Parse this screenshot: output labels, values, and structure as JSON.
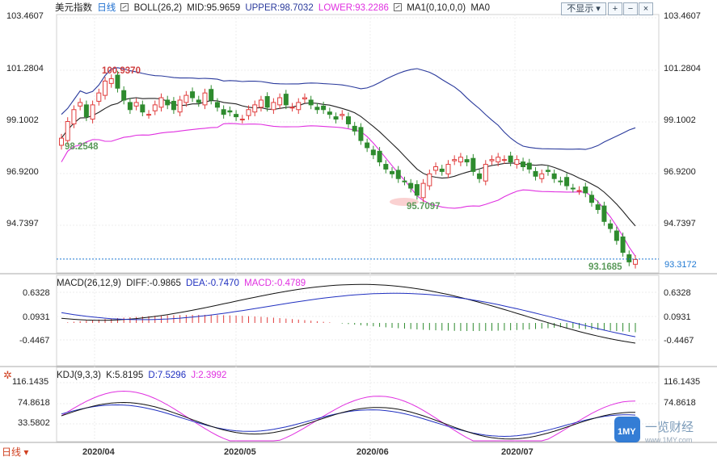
{
  "header": {
    "title": "美元指数",
    "period": "日线",
    "indicator": "BOLL(26,2)",
    "mid": "MID:95.9659",
    "upper": "UPPER:98.7032",
    "lower": "LOWER:93.2286",
    "ma": "MA1(0,10,0,0)",
    "ma0": "MA0",
    "display_toggle": "不显示"
  },
  "colors": {
    "up": "#e03c3c",
    "down": "#2e8b2e",
    "boll_upper": "#2a3a9c",
    "boll_lower": "#e030e0",
    "boll_mid": "#222222",
    "dif": "#111111",
    "dea": "#2030c0",
    "k": "#111111",
    "d": "#2030c0",
    "j": "#e030e0",
    "price_line": "#1e78d2"
  },
  "price_axis": [
    "103.4607",
    "101.2804",
    "99.1002",
    "96.9200",
    "94.7397"
  ],
  "last_price": "93.3172",
  "annotations": {
    "high": "100.9370",
    "low1": "98.2548",
    "low2": "95.7097",
    "low3": "93.1685"
  },
  "macd": {
    "label": "MACD(26,12,9)",
    "dif": "DIFF:-0.9865",
    "dea": "DEA:-0.7470",
    "macd": "MACD:-0.4789",
    "axis": [
      "0.6328",
      "0.0931",
      "-0.4467"
    ]
  },
  "kdj": {
    "label": "KDJ(9,3,3)",
    "k": "K:5.8195",
    "d": "D:7.5296",
    "j": "J:2.3992",
    "axis": [
      "116.1435",
      "74.8618",
      "33.5802"
    ]
  },
  "x_axis": [
    "2020/04",
    "2020/05",
    "2020/06",
    "2020/07"
  ],
  "bottom_tab": "日线",
  "logo_text": "一览财经",
  "logo_url": "www.1MY.com",
  "chart_data": {
    "type": "candlestick",
    "title": "美元指数 日线",
    "ylim": [
      92.5,
      103.9
    ],
    "series": {
      "close": [
        98.4,
        99.1,
        99.6,
        99.9,
        99.3,
        99.8,
        100.3,
        100.8,
        100.9,
        100.5,
        100.0,
        99.6,
        99.9,
        99.5,
        99.4,
        99.8,
        100.1,
        99.8,
        99.6,
        100.0,
        100.2,
        100.1,
        99.9,
        100.3,
        100.0,
        99.7,
        99.4,
        99.5,
        99.3,
        99.2,
        99.6,
        99.8,
        100.0,
        99.7,
        99.9,
        100.1,
        99.8,
        99.7,
        99.9,
        100.1,
        99.8,
        99.6,
        99.6,
        99.4,
        99.2,
        99.4,
        99.0,
        98.7,
        98.3,
        98.0,
        97.7,
        97.4,
        97.1,
        96.9,
        96.7,
        96.6,
        96.3,
        96.0,
        96.5,
        96.9,
        97.2,
        97.0,
        97.3,
        97.5,
        97.6,
        97.4,
        97.0,
        96.7,
        97.3,
        97.5,
        97.6,
        97.5,
        97.4,
        97.5,
        97.2,
        97.1,
        96.8,
        96.9,
        97.0,
        96.7,
        96.6,
        96.4,
        96.3,
        96.2,
        96.1,
        95.7,
        95.4,
        94.9,
        94.6,
        94.1,
        93.6,
        93.2,
        93.3
      ],
      "boll_upper_end": 98.7032,
      "boll_mid_end": 95.9659,
      "boll_lower_end": 93.2286
    }
  }
}
